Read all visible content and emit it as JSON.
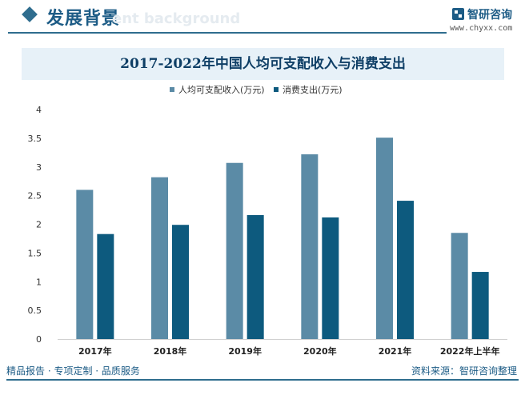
{
  "header": {
    "title": "发展背景",
    "title_en": "ent background",
    "brand_name": "智研咨询",
    "brand_url": "www.chyxx.com"
  },
  "colors": {
    "income": "#5b8ba6",
    "consumption": "#0d5a7e",
    "accent": "#2f6d8e"
  },
  "chart_data": {
    "type": "bar",
    "title": "2017-2022年中国人均可支配收入与消费支出",
    "categories": [
      "2017年",
      "2018年",
      "2019年",
      "2020年",
      "2021年",
      "2022年上半年"
    ],
    "series": [
      {
        "name": "人均可支配收入(万元)",
        "values": [
          2.6,
          2.82,
          3.07,
          3.22,
          3.51,
          1.85
        ]
      },
      {
        "name": "消费支出(万元)",
        "values": [
          1.83,
          1.99,
          2.16,
          2.12,
          2.41,
          1.17
        ]
      }
    ],
    "ylim": [
      0,
      4
    ],
    "yticks": [
      "0",
      "0.5",
      "1",
      "1.5",
      "2",
      "2.5",
      "3",
      "3.5",
      "4"
    ],
    "legend_position": "top-center",
    "grid": false
  },
  "footer": {
    "left": "精品报告 · 专项定制 · 品质服务",
    "right": "资料来源：智研咨询整理"
  }
}
